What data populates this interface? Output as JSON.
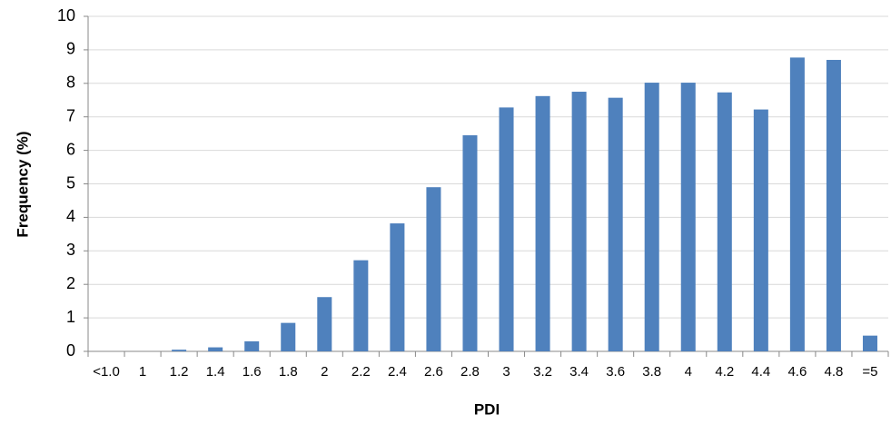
{
  "chart_data": {
    "type": "bar",
    "x_label": "PDI",
    "y_label": "Frequency (%)",
    "categories": [
      "<1.0",
      "1",
      "1.2",
      "1.4",
      "1.6",
      "1.8",
      "2",
      "2.2",
      "2.4",
      "2.6",
      "2.8",
      "3",
      "3.2",
      "3.4",
      "3.6",
      "3.8",
      "4",
      "4.2",
      "4.4",
      "4.6",
      "4.8",
      "=5"
    ],
    "values": [
      0,
      0,
      0.05,
      0.12,
      0.3,
      0.85,
      1.62,
      2.72,
      3.82,
      4.9,
      6.45,
      7.28,
      7.62,
      7.75,
      7.57,
      8.02,
      8.02,
      7.73,
      7.22,
      8.77,
      8.7,
      0.47
    ],
    "color": "#4f81bd",
    "ylim": [
      0,
      10
    ],
    "yticks": [
      0,
      1,
      2,
      3,
      4,
      5,
      6,
      7,
      8,
      9,
      10
    ],
    "grid": true
  }
}
